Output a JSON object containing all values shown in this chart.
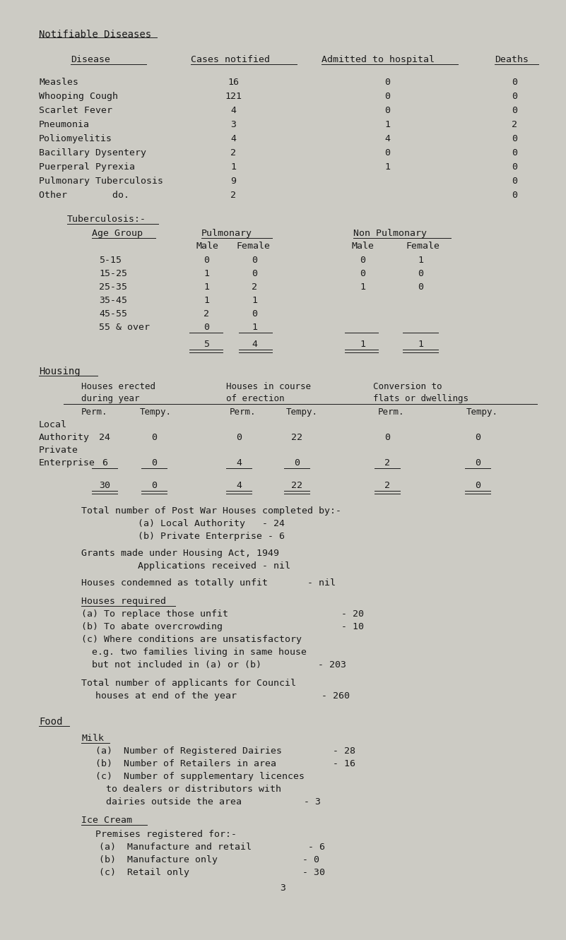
{
  "bg_color": "#cccbc4",
  "text_color": "#1a1a1a",
  "title": "Notifiable Diseases",
  "col_headers": [
    "Disease",
    "Cases notified",
    "Admitted to hospital",
    "Deaths"
  ],
  "diseases": [
    [
      "Measles",
      "16",
      "0",
      "0"
    ],
    [
      "Whooping Cough",
      "121",
      "0",
      "0"
    ],
    [
      "Scarlet Fever",
      "4",
      "0",
      "0"
    ],
    [
      "Pneumonia",
      "3",
      "1",
      "2"
    ],
    [
      "Poliomyelitis",
      "4",
      "4",
      "0"
    ],
    [
      "Bacillary Dysentery",
      "2",
      "0",
      "0"
    ],
    [
      "Puerperal Pyrexia",
      "1",
      "1",
      "0"
    ],
    [
      "Pulmonary Tuberculosis",
      "9",
      "",
      "0"
    ],
    [
      "Other        do.",
      "2",
      "",
      "0"
    ]
  ],
  "tb_rows": [
    [
      "5-15",
      "0",
      "0",
      "0",
      "1"
    ],
    [
      "15-25",
      "1",
      "0",
      "0",
      "0"
    ],
    [
      "25-35",
      "1",
      "2",
      "1",
      "0"
    ],
    [
      "35-45",
      "1",
      "1",
      "",
      ""
    ],
    [
      "45-55",
      "2",
      "0",
      "",
      ""
    ],
    [
      "55 & over",
      "0",
      "1",
      "",
      ""
    ]
  ],
  "tb_totals": [
    "5",
    "4",
    "1",
    "1"
  ],
  "housing_row1": [
    "24",
    "0",
    "0",
    "22",
    "0",
    "0"
  ],
  "housing_row2": [
    "6",
    "0",
    "4",
    "0",
    "2",
    "0"
  ],
  "housing_totals": [
    "30",
    "0",
    "4",
    "22",
    "2",
    "0"
  ],
  "page_number": "3"
}
